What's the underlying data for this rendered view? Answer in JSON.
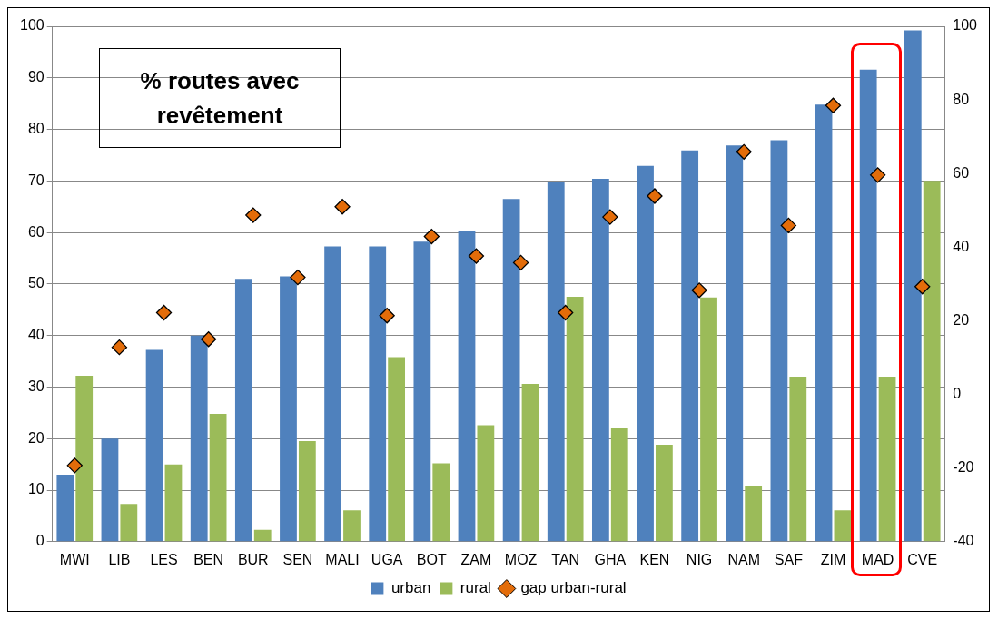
{
  "chart_data": {
    "type": "bar",
    "title": "% routes avec revêtement",
    "categories": [
      "MWI",
      "LIB",
      "LES",
      "BEN",
      "BUR",
      "SEN",
      "MALI",
      "UGA",
      "BOT",
      "ZAM",
      "MOZ",
      "TAN",
      "GHA",
      "KEN",
      "NIG",
      "NAM",
      "SAF",
      "ZIM",
      "MAD",
      "CVE"
    ],
    "series": [
      {
        "name": "urban",
        "color": "#4f81bd",
        "values": [
          13,
          20,
          37.2,
          40,
          51,
          51.5,
          57.3,
          57.3,
          58.2,
          60.3,
          66.5,
          69.8,
          70.4,
          72.9,
          75.9,
          76.9,
          77.9,
          84.8,
          91.6,
          99.2
        ]
      },
      {
        "name": "rural",
        "color": "#9bbb59",
        "values": [
          32.2,
          7.3,
          15,
          24.8,
          2.3,
          19.5,
          6.1,
          35.8,
          15.2,
          22.6,
          30.6,
          47.5,
          22,
          18.8,
          47.4,
          10.9,
          32,
          6.1,
          32,
          70
        ]
      },
      {
        "name": "gap urban-rural",
        "type": "scatter",
        "axis": "y2",
        "color": "#e36c09",
        "marker": "diamond",
        "values": [
          -19.3,
          12.8,
          22.2,
          15,
          48.7,
          31.8,
          51,
          21.4,
          42.9,
          37.6,
          35.8,
          22.2,
          48.2,
          53.9,
          28.3,
          65.9,
          45.9,
          78.5,
          59.6,
          29.3
        ]
      }
    ],
    "ylim": [
      0,
      100
    ],
    "yticks": [
      0,
      10,
      20,
      30,
      40,
      50,
      60,
      70,
      80,
      90,
      100
    ],
    "y2lim": [
      -40,
      100
    ],
    "y2ticks": [
      -40,
      -20,
      0,
      20,
      40,
      60,
      80,
      100
    ],
    "grid": "y",
    "legend": "bottom"
  }
}
